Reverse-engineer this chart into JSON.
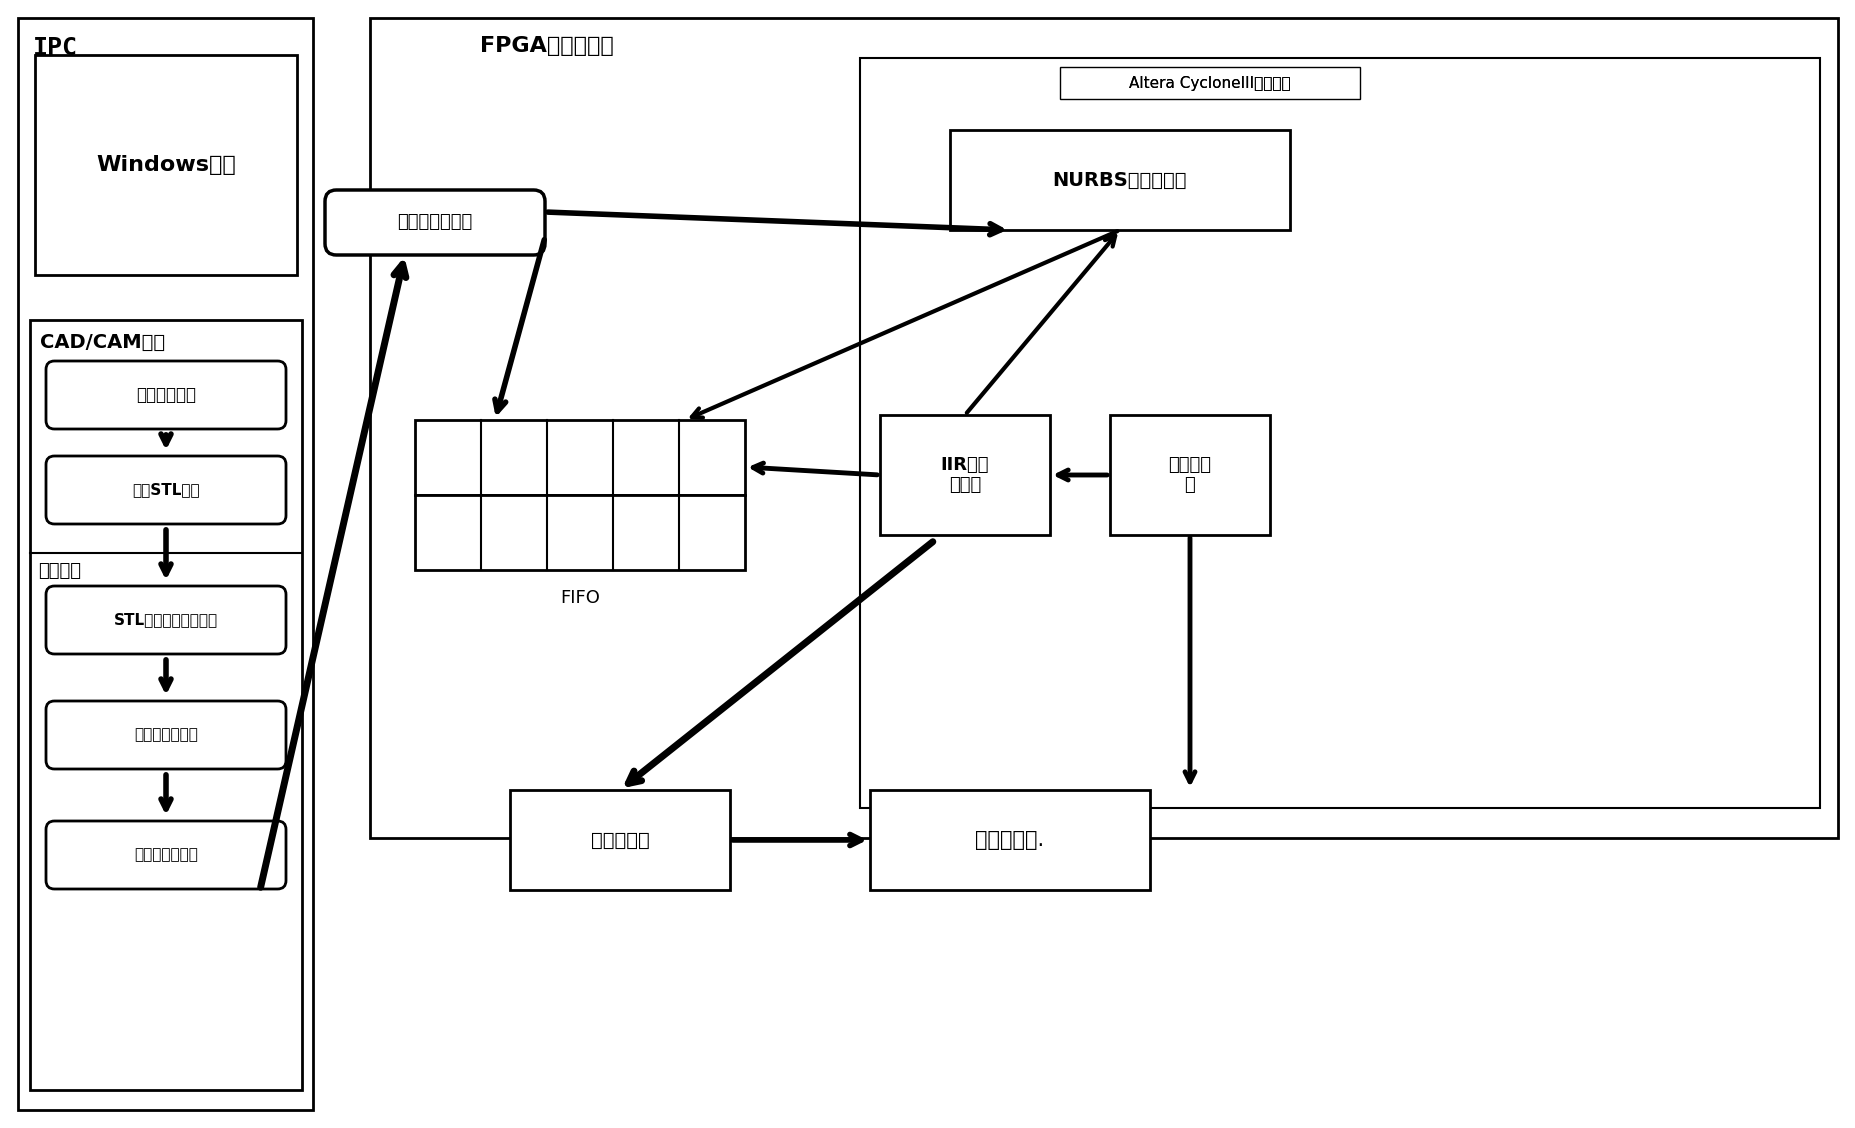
{
  "bg_color": "#ffffff",
  "lc": "#000000",
  "ipc_label": "IPC",
  "fpga_label": "FPGA运动控制器",
  "altera_label": "Altera CycloneIII系列芯片",
  "windows_text": "Windows系统",
  "cadcam_label": "CAD/CAM软件",
  "data_proc_label": "数据处理",
  "ethernet_text": "以太网通讯模块",
  "nurbs_text": "NURBS实时插补器",
  "iir_text": "IIR数字\n滤波器",
  "encoder_text": "编码器模\n块",
  "fifo_label": "FIFO",
  "servo_text": "伺服驱动器",
  "robot_text": "工业机器人.",
  "stl_flow": [
    "三维喷涂零件",
    "生成STL文件",
    "STL数据的筛选与整理",
    "分层处理与优化",
    "离散的控制点集"
  ]
}
